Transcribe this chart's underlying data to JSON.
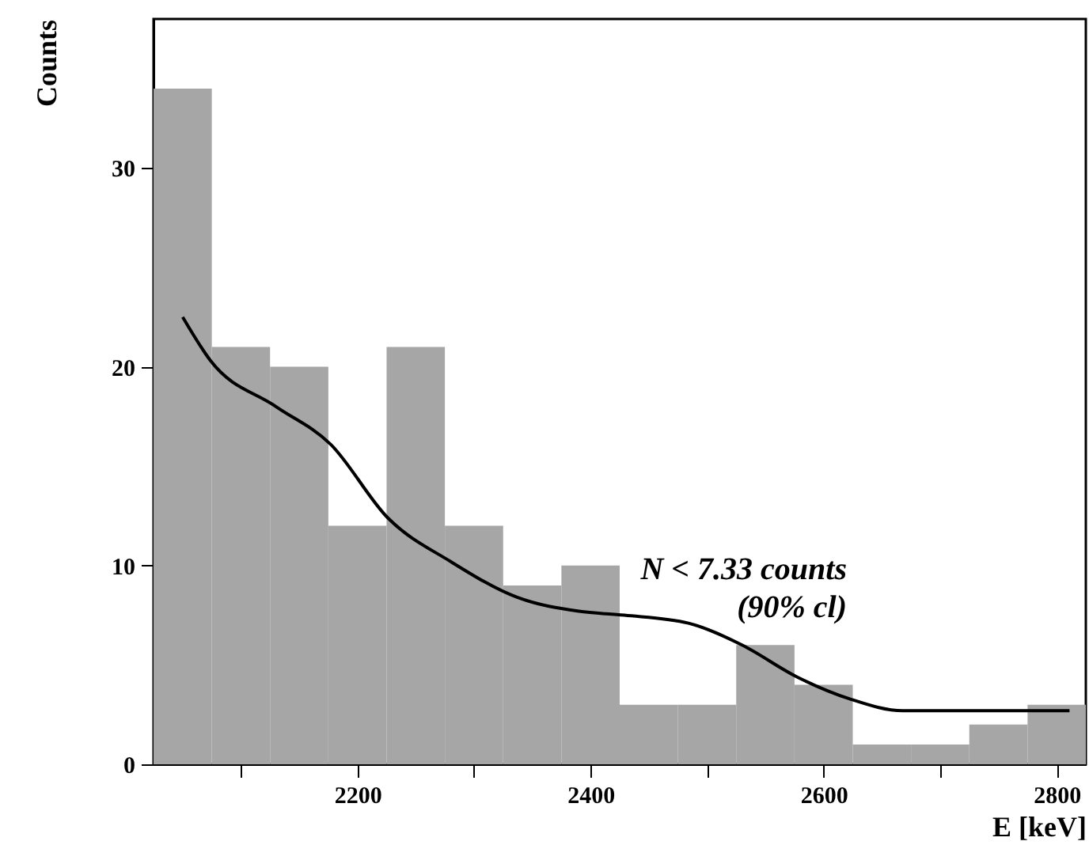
{
  "chart_data": {
    "type": "histogram",
    "xlabel": "E [keV]",
    "ylabel": "Counts",
    "bins": [
      2025,
      2075,
      2125,
      2175,
      2225,
      2275,
      2325,
      2375,
      2425,
      2475,
      2525,
      2575,
      2625,
      2675,
      2725,
      2775,
      2825
    ],
    "values": [
      34,
      21,
      20,
      12,
      21,
      12,
      9,
      10,
      3,
      3,
      6,
      4,
      1,
      1,
      2,
      3
    ],
    "color": "#a6a6a6",
    "series": [
      {
        "type": "line",
        "color": "#000000",
        "x": [
          2050,
          2074,
          2130,
          2177,
          2226,
          2280,
          2337,
          2390,
          2429,
          2484,
          2530,
          2577,
          2622,
          2668,
          2720,
          2811
        ],
        "values": [
          22.5,
          20.3,
          18,
          16.1,
          12.4,
          10.2,
          8.4,
          7.7,
          7.5,
          7.1,
          6.0,
          4.4,
          3.3,
          2.7,
          2.7,
          2.7
        ]
      }
    ],
    "annotations": [
      "N < 7.33 counts\n(90% cl)"
    ],
    "xlim": [
      2025,
      2825
    ],
    "xticks": [
      {
        "value": 2100,
        "label": null
      },
      2200,
      {
        "value": 2300,
        "label": null
      },
      2400,
      {
        "value": 2500,
        "label": null
      },
      2600,
      {
        "value": 2700,
        "label": null
      },
      2800
    ],
    "ylim": [
      0,
      37.5
    ],
    "yticks": [
      0,
      10,
      20,
      30
    ],
    "grid": false
  }
}
